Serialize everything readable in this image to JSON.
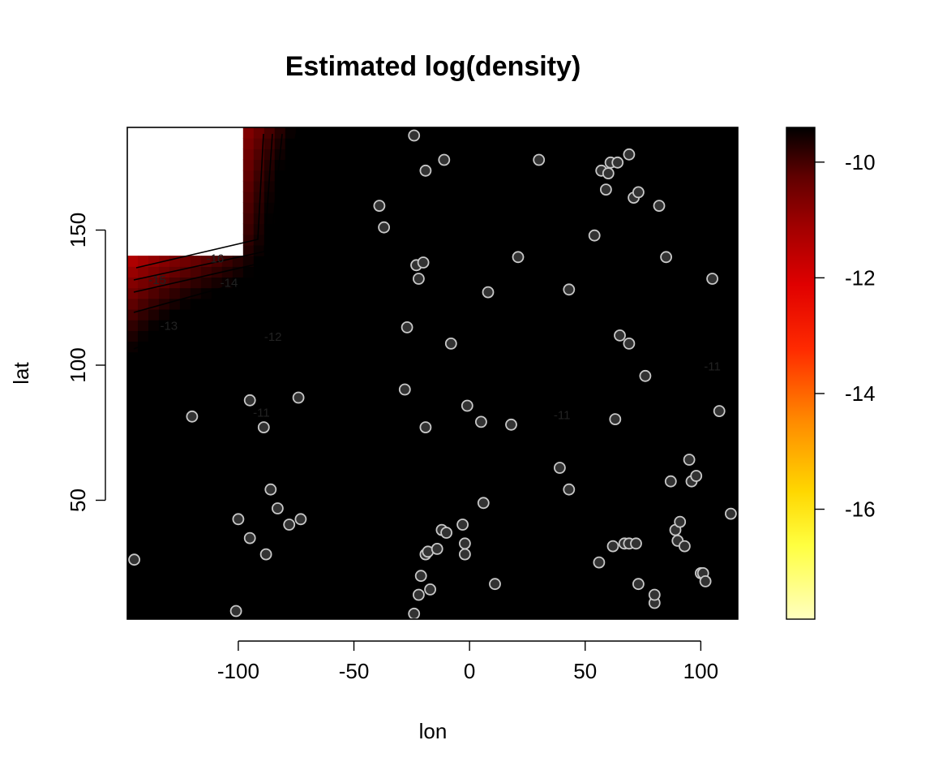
{
  "chart_data": {
    "type": "heatmap",
    "title": "Estimated log(density)",
    "xlabel": "lon",
    "ylabel": "lat",
    "xlim": [
      -148,
      116
    ],
    "ylim": [
      6,
      188
    ],
    "x_ticks": [
      {
        "value": -100,
        "label": "-100"
      },
      {
        "value": -50,
        "label": "-50"
      },
      {
        "value": 0,
        "label": "0"
      },
      {
        "value": 50,
        "label": "50"
      },
      {
        "value": 100,
        "label": "100"
      }
    ],
    "y_ticks": [
      {
        "value": 50,
        "label": "50"
      },
      {
        "value": 100,
        "label": "100"
      },
      {
        "value": 150,
        "label": "150"
      }
    ],
    "colorbar": {
      "range": [
        -17.9,
        -9.4
      ],
      "ticks": [
        {
          "value": -10,
          "label": "-10"
        },
        {
          "value": -12,
          "label": "-12"
        },
        {
          "value": -14,
          "label": "-14"
        },
        {
          "value": -16,
          "label": "-16"
        }
      ],
      "palette": "heat",
      "colors": [
        "#ffffc0",
        "#ffff40",
        "#ffd700",
        "#ff8c00",
        "#ff2a00",
        "#e00000",
        "#a00000",
        "#600000",
        "#000000"
      ]
    },
    "missing_region": {
      "x": [
        -148,
        -96
      ],
      "y": [
        141,
        188
      ]
    },
    "contour_labels": [
      {
        "value": -16,
        "label": "-16",
        "x": -110,
        "y": 138
      },
      {
        "value": -15,
        "label": "-15",
        "x": -135,
        "y": 130
      },
      {
        "value": -14,
        "label": "-14",
        "x": -104,
        "y": 129
      },
      {
        "value": -13,
        "label": "-13",
        "x": -130,
        "y": 113
      },
      {
        "value": -12,
        "label": "-12",
        "x": -85,
        "y": 109
      },
      {
        "value": -11,
        "label": "-11",
        "x": -90,
        "y": 81
      },
      {
        "value": -11,
        "label": "-11",
        "x": 40,
        "y": 80
      },
      {
        "value": -11,
        "label": "-11",
        "x": 105,
        "y": 98
      }
    ],
    "points": [
      [
        -145,
        28
      ],
      [
        -120,
        81
      ],
      [
        -101,
        9
      ],
      [
        -100,
        43
      ],
      [
        -95,
        36
      ],
      [
        -95,
        87
      ],
      [
        -89,
        77
      ],
      [
        -88,
        30
      ],
      [
        -86,
        54
      ],
      [
        -83,
        47
      ],
      [
        -78,
        41
      ],
      [
        -73,
        43
      ],
      [
        -74,
        88
      ],
      [
        -39,
        159
      ],
      [
        -37,
        151
      ],
      [
        -27,
        114
      ],
      [
        -28,
        91
      ],
      [
        -24,
        185
      ],
      [
        -23,
        137
      ],
      [
        -22,
        132
      ],
      [
        -20,
        138
      ],
      [
        -19,
        172
      ],
      [
        -19,
        77
      ],
      [
        -21,
        22
      ],
      [
        -22,
        15
      ],
      [
        -24,
        8
      ],
      [
        -19,
        30
      ],
      [
        -18,
        31
      ],
      [
        -17,
        17
      ],
      [
        -14,
        32
      ],
      [
        -12,
        39
      ],
      [
        -10,
        38
      ],
      [
        -11,
        176
      ],
      [
        -8,
        108
      ],
      [
        -3,
        41
      ],
      [
        -2,
        34
      ],
      [
        -2,
        30
      ],
      [
        -1,
        85
      ],
      [
        5,
        79
      ],
      [
        6,
        49
      ],
      [
        8,
        127
      ],
      [
        11,
        19
      ],
      [
        18,
        78
      ],
      [
        21,
        140
      ],
      [
        30,
        176
      ],
      [
        39,
        62
      ],
      [
        43,
        54
      ],
      [
        43,
        128
      ],
      [
        54,
        148
      ],
      [
        56,
        27
      ],
      [
        57,
        172
      ],
      [
        59,
        165
      ],
      [
        60,
        171
      ],
      [
        61,
        175
      ],
      [
        62,
        33
      ],
      [
        63,
        80
      ],
      [
        64,
        175
      ],
      [
        65,
        111
      ],
      [
        67,
        34
      ],
      [
        69,
        34
      ],
      [
        69,
        108
      ],
      [
        69,
        178
      ],
      [
        71,
        162
      ],
      [
        72,
        34
      ],
      [
        73,
        164
      ],
      [
        73,
        19
      ],
      [
        76,
        96
      ],
      [
        80,
        12
      ],
      [
        80,
        15
      ],
      [
        82,
        159
      ],
      [
        85,
        140
      ],
      [
        87,
        57
      ],
      [
        89,
        39
      ],
      [
        90,
        35
      ],
      [
        91,
        42
      ],
      [
        93,
        33
      ],
      [
        95,
        65
      ],
      [
        96,
        57
      ],
      [
        98,
        59
      ],
      [
        100,
        23
      ],
      [
        101,
        23
      ],
      [
        102,
        20
      ],
      [
        105,
        132
      ],
      [
        108,
        83
      ],
      [
        113,
        45
      ]
    ]
  }
}
